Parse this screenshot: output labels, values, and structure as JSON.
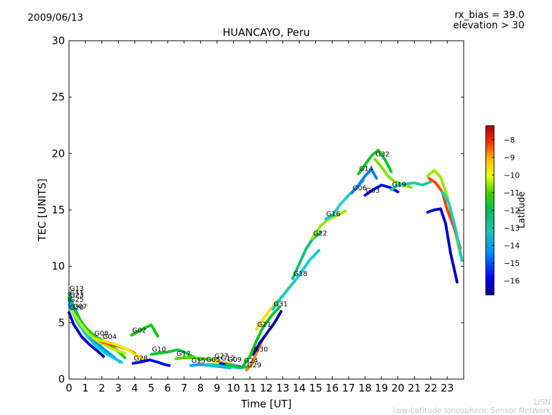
{
  "header": {
    "date": "2009/06/13",
    "rx_bias": "rx_bias = 39.0",
    "elevation": "elevation > 30"
  },
  "footer": {
    "short_name": "LISN",
    "full_name": "Low-Latitude Ionospheric Sensor Network"
  },
  "chart_data": {
    "type": "scatter",
    "title": "HUANCAYO, Peru",
    "xlabel": "Time [UT]",
    "ylabel": "TEC [UNITS]",
    "xlim": [
      0,
      24
    ],
    "ylim": [
      0,
      30
    ],
    "xticks": [
      0,
      1,
      2,
      3,
      4,
      5,
      6,
      7,
      8,
      9,
      10,
      11,
      12,
      13,
      14,
      15,
      16,
      17,
      18,
      19,
      20,
      21,
      22,
      23
    ],
    "yticks": [
      0,
      5,
      10,
      15,
      20,
      25,
      30
    ],
    "grid": false,
    "colorbar": {
      "label": "Latitude",
      "range": [
        -16.8,
        -7.2
      ],
      "ticks": [
        -8,
        -9,
        -10,
        -11,
        -12,
        -13,
        -14,
        -15,
        -16
      ],
      "colormap": [
        "#00008f",
        "#0000ff",
        "#0080ff",
        "#00c8ff",
        "#20d0b0",
        "#00c060",
        "#00c800",
        "#80e000",
        "#e8ff00",
        "#ffd000",
        "#ff8000",
        "#ff2000",
        "#b00000"
      ]
    },
    "series": [
      {
        "name": "G13",
        "lat": -13.2,
        "points": [
          [
            0.0,
            7.6
          ],
          [
            0.3,
            6.4
          ],
          [
            0.7,
            5.2
          ],
          [
            1.2,
            4.2
          ],
          [
            1.8,
            3.6
          ],
          [
            2.5,
            3.0
          ],
          [
            3.2,
            2.2
          ]
        ]
      },
      {
        "name": "G11",
        "lat": -11.8,
        "points": [
          [
            0.0,
            7.2
          ],
          [
            0.4,
            5.9
          ],
          [
            0.9,
            4.7
          ],
          [
            1.5,
            3.9
          ],
          [
            2.2,
            3.3
          ],
          [
            2.9,
            2.6
          ],
          [
            3.4,
            1.9
          ]
        ]
      },
      {
        "name": "G23",
        "lat": -15.0,
        "points": [
          [
            0.0,
            7.0
          ],
          [
            0.4,
            5.6
          ],
          [
            0.9,
            4.5
          ],
          [
            1.5,
            3.5
          ],
          [
            2.0,
            2.8
          ],
          [
            2.6,
            2.1
          ],
          [
            3.1,
            1.5
          ]
        ]
      },
      {
        "name": "G25",
        "lat": -14.2,
        "points": [
          [
            0.0,
            6.6
          ],
          [
            0.5,
            5.1
          ],
          [
            1.0,
            4.0
          ],
          [
            1.6,
            3.0
          ],
          [
            2.2,
            2.3
          ],
          [
            2.8,
            1.8
          ],
          [
            3.2,
            1.5
          ]
        ]
      },
      {
        "name": "G20",
        "lat": -16.4,
        "points": [
          [
            0.0,
            5.9
          ],
          [
            0.3,
            4.8
          ],
          [
            0.8,
            3.7
          ],
          [
            1.3,
            3.0
          ],
          [
            1.8,
            2.4
          ],
          [
            2.1,
            2.0
          ]
        ]
      },
      {
        "name": "G07",
        "lat": -10.8,
        "points": [
          [
            0.2,
            6.0
          ],
          [
            0.7,
            4.9
          ],
          [
            1.2,
            4.0
          ],
          [
            1.8,
            3.3
          ],
          [
            2.6,
            2.7
          ],
          [
            3.4,
            2.3
          ]
        ]
      },
      {
        "name": "G04",
        "lat": -8.2,
        "points": [
          [
            2.0,
            3.3
          ],
          [
            2.5,
            3.1
          ],
          [
            3.0,
            2.9
          ],
          [
            3.6,
            2.6
          ],
          [
            4.0,
            2.3
          ]
        ]
      },
      {
        "name": "G08",
        "lat": -10.0,
        "points": [
          [
            1.5,
            3.6
          ],
          [
            2.0,
            3.4
          ],
          [
            2.8,
            3.1
          ],
          [
            3.6,
            2.6
          ],
          [
            4.2,
            2.0
          ],
          [
            4.8,
            1.6
          ]
        ]
      },
      {
        "name": "G02",
        "lat": -12.0,
        "points": [
          [
            3.8,
            3.9
          ],
          [
            4.2,
            4.2
          ],
          [
            4.7,
            4.6
          ],
          [
            5.0,
            4.8
          ],
          [
            5.4,
            3.8
          ]
        ]
      },
      {
        "name": "G28",
        "lat": -16.0,
        "points": [
          [
            3.9,
            1.4
          ],
          [
            4.3,
            1.5
          ],
          [
            4.9,
            1.7
          ],
          [
            5.4,
            1.5
          ],
          [
            5.8,
            1.3
          ],
          [
            6.1,
            1.2
          ]
        ]
      },
      {
        "name": "G10",
        "lat": -12.5,
        "points": [
          [
            5.0,
            2.2
          ],
          [
            5.5,
            2.3
          ],
          [
            6.0,
            2.4
          ],
          [
            6.6,
            2.6
          ],
          [
            7.0,
            2.4
          ],
          [
            7.5,
            2.0
          ],
          [
            8.0,
            1.7
          ]
        ]
      },
      {
        "name": "G17",
        "lat": -11.5,
        "points": [
          [
            6.5,
            1.8
          ],
          [
            7.0,
            1.9
          ],
          [
            7.6,
            1.9
          ],
          [
            8.2,
            1.8
          ],
          [
            8.8,
            1.7
          ],
          [
            9.3,
            1.5
          ]
        ]
      },
      {
        "name": "G15",
        "lat": -14.8,
        "points": [
          [
            7.4,
            1.2
          ],
          [
            8.0,
            1.3
          ],
          [
            8.6,
            1.2
          ],
          [
            9.2,
            1.1
          ],
          [
            9.8,
            1.0
          ]
        ]
      },
      {
        "name": "G05",
        "lat": -13.5,
        "points": [
          [
            8.3,
            1.3
          ],
          [
            8.8,
            1.3
          ],
          [
            9.3,
            1.2
          ],
          [
            9.8,
            1.1
          ],
          [
            10.3,
            1.0
          ]
        ]
      },
      {
        "name": "G27",
        "lat": -9.5,
        "points": [
          [
            8.8,
            1.6
          ],
          [
            9.2,
            1.5
          ],
          [
            9.6,
            1.4
          ],
          [
            10.0,
            1.3
          ]
        ]
      },
      {
        "name": "G12",
        "lat": -15.8,
        "points": [
          [
            9.2,
            1.4
          ],
          [
            9.6,
            1.3
          ],
          [
            10.0,
            1.2
          ],
          [
            10.4,
            1.1
          ]
        ]
      },
      {
        "name": "G09",
        "lat": -12.8,
        "points": [
          [
            9.6,
            1.3
          ],
          [
            10.0,
            1.2
          ],
          [
            10.4,
            1.0
          ],
          [
            10.9,
            1.1
          ]
        ]
      },
      {
        "name": "G29",
        "lat": -8.8,
        "points": [
          [
            10.8,
            0.8
          ],
          [
            11.1,
            1.3
          ],
          [
            11.4,
            2.3
          ],
          [
            11.8,
            3.6
          ]
        ]
      },
      {
        "name": "G30",
        "lat": -16.6,
        "points": [
          [
            11.2,
            2.2
          ],
          [
            11.6,
            3.2
          ],
          [
            12.0,
            4.0
          ],
          [
            12.5,
            5.0
          ],
          [
            12.9,
            6.0
          ]
        ]
      },
      {
        "name": "G24",
        "lat": -12.2,
        "points": [
          [
            10.6,
            1.2
          ],
          [
            11.0,
            2.0
          ],
          [
            11.4,
            3.4
          ],
          [
            11.8,
            4.6
          ],
          [
            12.3,
            5.6
          ],
          [
            12.8,
            6.4
          ]
        ]
      },
      {
        "name": "G21",
        "lat": -9.8,
        "points": [
          [
            11.4,
            4.4
          ],
          [
            11.8,
            5.3
          ],
          [
            12.2,
            6.1
          ],
          [
            12.6,
            6.8
          ],
          [
            13.0,
            7.4
          ],
          [
            13.5,
            8.4
          ]
        ]
      },
      {
        "name": "G31",
        "lat": -14.0,
        "points": [
          [
            12.4,
            6.2
          ],
          [
            12.9,
            7.2
          ],
          [
            13.4,
            8.1
          ],
          [
            14.0,
            9.2
          ],
          [
            14.6,
            10.5
          ],
          [
            15.2,
            11.4
          ]
        ]
      },
      {
        "name": "G18",
        "lat": -13.0,
        "points": [
          [
            13.6,
            8.9
          ],
          [
            14.0,
            10.2
          ],
          [
            14.4,
            11.5
          ],
          [
            14.8,
            12.4
          ],
          [
            15.3,
            13.0
          ]
        ]
      },
      {
        "name": "G22",
        "lat": -11.0,
        "points": [
          [
            14.8,
            12.5
          ],
          [
            15.3,
            13.6
          ],
          [
            15.8,
            14.2
          ],
          [
            16.3,
            14.5
          ],
          [
            16.8,
            14.9
          ]
        ]
      },
      {
        "name": "G16",
        "lat": -13.8,
        "points": [
          [
            15.6,
            14.2
          ],
          [
            16.0,
            14.5
          ],
          [
            16.5,
            15.5
          ],
          [
            17.0,
            16.3
          ],
          [
            17.5,
            17.0
          ],
          [
            17.9,
            17.6
          ]
        ]
      },
      {
        "name": "G06",
        "lat": -15.2,
        "points": [
          [
            17.2,
            16.5
          ],
          [
            17.6,
            17.2
          ],
          [
            18.0,
            18.0
          ],
          [
            18.4,
            18.6
          ],
          [
            18.7,
            17.8
          ]
        ]
      },
      {
        "name": "G03",
        "lat": -16.2,
        "points": [
          [
            18.0,
            16.3
          ],
          [
            18.5,
            16.8
          ],
          [
            19.0,
            17.2
          ],
          [
            19.5,
            17.0
          ],
          [
            20.0,
            16.6
          ]
        ]
      },
      {
        "name": "G14",
        "lat": -12.3,
        "points": [
          [
            17.6,
            18.2
          ],
          [
            18.0,
            19.0
          ],
          [
            18.4,
            19.8
          ],
          [
            18.8,
            20.3
          ],
          [
            19.2,
            19.5
          ],
          [
            19.6,
            18.4
          ]
        ]
      },
      {
        "name": "G32",
        "lat": -11.2,
        "points": [
          [
            18.6,
            19.5
          ],
          [
            19.0,
            18.8
          ],
          [
            19.4,
            18.0
          ],
          [
            19.8,
            17.5
          ],
          [
            20.2,
            17.3
          ],
          [
            20.8,
            17.0
          ]
        ]
      },
      {
        "name": "G19",
        "lat": -13.4,
        "points": [
          [
            19.6,
            16.8
          ],
          [
            20.0,
            17.2
          ],
          [
            20.5,
            17.3
          ],
          [
            21.0,
            17.4
          ],
          [
            21.5,
            17.2
          ],
          [
            22.0,
            17.5
          ]
        ]
      },
      {
        "name": "",
        "lat": -11.0,
        "points": [
          [
            21.8,
            18.0
          ],
          [
            22.2,
            18.5
          ],
          [
            22.6,
            17.9
          ],
          [
            23.0,
            16.2
          ],
          [
            23.4,
            13.6
          ],
          [
            23.8,
            11.0
          ]
        ]
      },
      {
        "name": "",
        "lat": -8.3,
        "points": [
          [
            21.9,
            17.8
          ],
          [
            22.3,
            17.4
          ],
          [
            22.7,
            16.6
          ],
          [
            23.0,
            15.0
          ],
          [
            23.4,
            13.5
          ],
          [
            23.8,
            11.6
          ]
        ]
      },
      {
        "name": "",
        "lat": -16.4,
        "points": [
          [
            21.8,
            14.8
          ],
          [
            22.2,
            15.0
          ],
          [
            22.6,
            15.1
          ],
          [
            22.9,
            13.8
          ],
          [
            23.2,
            11.2
          ],
          [
            23.6,
            8.6
          ]
        ]
      },
      {
        "name": "",
        "lat": -13.8,
        "points": [
          [
            22.7,
            16.6
          ],
          [
            23.1,
            15.6
          ],
          [
            23.5,
            13.4
          ],
          [
            23.9,
            10.5
          ]
        ]
      }
    ]
  }
}
